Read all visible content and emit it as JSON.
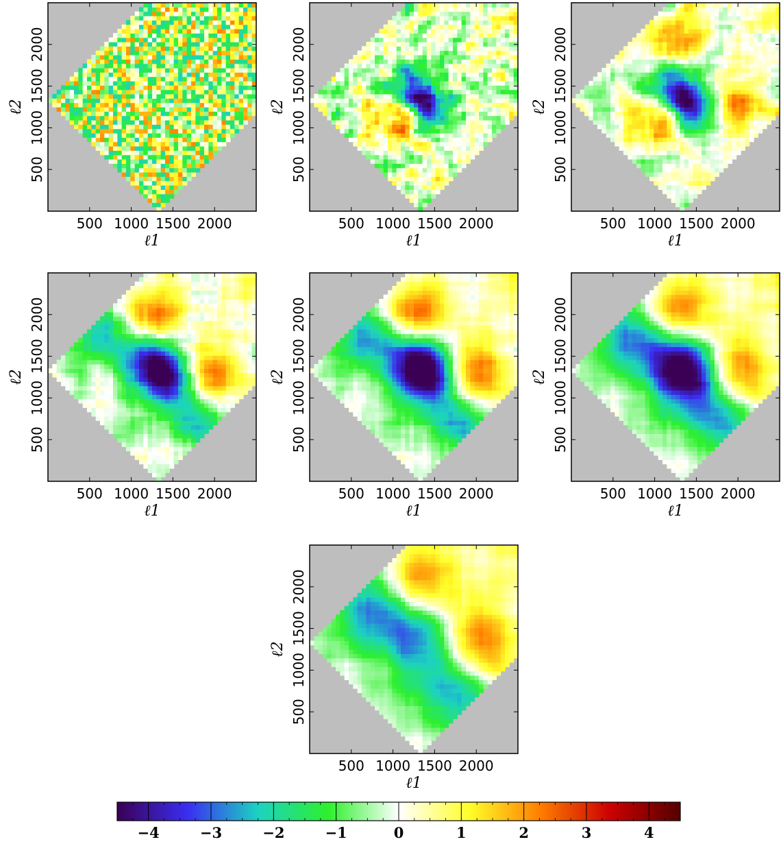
{
  "colors": {
    "mask": "#bebebe",
    "colormap_stops": [
      "#3b0055",
      "#3a2ef2",
      "#1cd2c2",
      "#2df02d",
      "#ffffff",
      "#ffff2a",
      "#ff7f00",
      "#cc0000",
      "#550000"
    ]
  },
  "chart_data": {
    "type": "heatmap",
    "colorbar": {
      "range": [
        -4.5,
        4.5
      ],
      "ticks": [
        -4,
        -3,
        -2,
        -1,
        0,
        1,
        2,
        3,
        4
      ],
      "tick_labels": [
        "−4",
        "−3",
        "−2",
        "−1",
        "0",
        "1",
        "2",
        "3",
        "4"
      ]
    },
    "panels": [
      {
        "xlabel": "ℓ1",
        "ylabel": "ℓ2",
        "xlim": [
          0,
          2500
        ],
        "ylim": [
          0,
          2500
        ],
        "xticks": [
          500,
          1000,
          1500,
          2000
        ],
        "yticks": [
          500,
          1000,
          1500,
          2000
        ],
        "xtick_labels": [
          "500",
          "1000",
          "1500",
          "2000"
        ],
        "ytick_labels": [
          "500",
          "1000",
          "1500",
          "2000"
        ],
        "smoothing": 0,
        "features": []
      },
      {
        "xlabel": "ℓ1",
        "ylabel": "ℓ2",
        "xlim": [
          0,
          2500
        ],
        "ylim": [
          0,
          2500
        ],
        "xticks": [
          500,
          1000,
          1500,
          2000
        ],
        "yticks": [
          500,
          1000,
          1500,
          2000
        ],
        "xtick_labels": [
          "500",
          "1000",
          "1500",
          "2000"
        ],
        "ytick_labels": [
          "500",
          "1000",
          "1500",
          "2000"
        ],
        "smoothing": 1,
        "features": [
          {
            "l1": 1200,
            "l2": 1450,
            "value": -3.2
          },
          {
            "l1": 1450,
            "l2": 1200,
            "value": -3.0
          },
          {
            "l1": 1050,
            "l2": 1100,
            "value": 2.6
          }
        ]
      },
      {
        "xlabel": "ℓ1",
        "ylabel": "ℓ2",
        "xlim": [
          0,
          2500
        ],
        "ylim": [
          0,
          2500
        ],
        "xticks": [
          500,
          1000,
          1500,
          2000
        ],
        "yticks": [
          500,
          1000,
          1500,
          2000
        ],
        "xtick_labels": [
          "500",
          "1000",
          "1500",
          "2000"
        ],
        "ytick_labels": [
          "500",
          "1000",
          "1500",
          "2000"
        ],
        "smoothing": 2,
        "features": [
          {
            "l1": 1200,
            "l2": 1450,
            "value": -3.3
          },
          {
            "l1": 1450,
            "l2": 1200,
            "value": -3.2
          },
          {
            "l1": 1050,
            "l2": 1100,
            "value": 2.8
          },
          {
            "l1": 1300,
            "l2": 2050,
            "value": 2.3
          },
          {
            "l1": 2000,
            "l2": 1300,
            "value": 2.3
          }
        ]
      },
      {
        "xlabel": "ℓ1",
        "ylabel": "ℓ2",
        "xlim": [
          0,
          2500
        ],
        "ylim": [
          0,
          2500
        ],
        "xticks": [
          500,
          1000,
          1500,
          2000
        ],
        "yticks": [
          500,
          1000,
          1500,
          2000
        ],
        "xtick_labels": [
          "500",
          "1000",
          "1500",
          "2000"
        ],
        "ytick_labels": [
          "500",
          "1000",
          "1500",
          "2000"
        ],
        "smoothing": 3,
        "features": [
          {
            "l1": 1200,
            "l2": 1450,
            "value": -3.4
          },
          {
            "l1": 1450,
            "l2": 1200,
            "value": -3.4
          },
          {
            "l1": 1300,
            "l2": 1950,
            "value": 2.8
          },
          {
            "l1": 1950,
            "l2": 1300,
            "value": 2.8
          },
          {
            "l1": 600,
            "l2": 1850,
            "value": -2.4
          },
          {
            "l1": 1800,
            "l2": 700,
            "value": -2.3
          }
        ]
      },
      {
        "xlabel": "ℓ1",
        "ylabel": "ℓ2",
        "xlim": [
          0,
          2500
        ],
        "ylim": [
          0,
          2500
        ],
        "xticks": [
          500,
          1000,
          1500,
          2000
        ],
        "yticks": [
          500,
          1000,
          1500,
          2000
        ],
        "xtick_labels": [
          "500",
          "1000",
          "1500",
          "2000"
        ],
        "ytick_labels": [
          "500",
          "1000",
          "1500",
          "2000"
        ],
        "smoothing": 4,
        "features": [
          {
            "l1": 1250,
            "l2": 1450,
            "value": -3.4
          },
          {
            "l1": 1450,
            "l2": 1250,
            "value": -3.4
          },
          {
            "l1": 1300,
            "l2": 1950,
            "value": 3.2
          },
          {
            "l1": 1950,
            "l2": 1300,
            "value": 3.2
          },
          {
            "l1": 650,
            "l2": 1800,
            "value": -2.6
          },
          {
            "l1": 1800,
            "l2": 700,
            "value": -2.6
          }
        ]
      },
      {
        "xlabel": "ℓ1",
        "ylabel": "ℓ2",
        "xlim": [
          0,
          2500
        ],
        "ylim": [
          0,
          2500
        ],
        "xticks": [
          500,
          1000,
          1500,
          2000
        ],
        "yticks": [
          500,
          1000,
          1500,
          2000
        ],
        "xtick_labels": [
          "500",
          "1000",
          "1500",
          "2000"
        ],
        "ytick_labels": [
          "500",
          "1000",
          "1500",
          "2000"
        ],
        "smoothing": 5,
        "features": [
          {
            "l1": 1250,
            "l2": 1450,
            "value": -3.2
          },
          {
            "l1": 1450,
            "l2": 1250,
            "value": -3.2
          },
          {
            "l1": 1300,
            "l2": 1950,
            "value": 3.2
          },
          {
            "l1": 1950,
            "l2": 1300,
            "value": 3.2
          },
          {
            "l1": 700,
            "l2": 1800,
            "value": -2.8
          },
          {
            "l1": 1800,
            "l2": 750,
            "value": -2.8
          }
        ]
      },
      {
        "xlabel": "ℓ1",
        "ylabel": "ℓ2",
        "xlim": [
          0,
          2500
        ],
        "ylim": [
          0,
          2500
        ],
        "xticks": [
          500,
          1000,
          1500,
          2000
        ],
        "yticks": [
          500,
          1000,
          1500,
          2000
        ],
        "xtick_labels": [
          "500",
          "1000",
          "1500",
          "2000"
        ],
        "ytick_labels": [
          "500",
          "1000",
          "1500",
          "2000"
        ],
        "smoothing": 6,
        "features": [
          {
            "l1": 1300,
            "l2": 1400,
            "value": -3.0
          },
          {
            "l1": 1300,
            "l2": 2000,
            "value": 3.0
          },
          {
            "l1": 2000,
            "l2": 1300,
            "value": 3.0
          },
          {
            "l1": 750,
            "l2": 1800,
            "value": -3.0
          },
          {
            "l1": 1750,
            "l2": 750,
            "value": -3.0
          }
        ]
      }
    ]
  }
}
